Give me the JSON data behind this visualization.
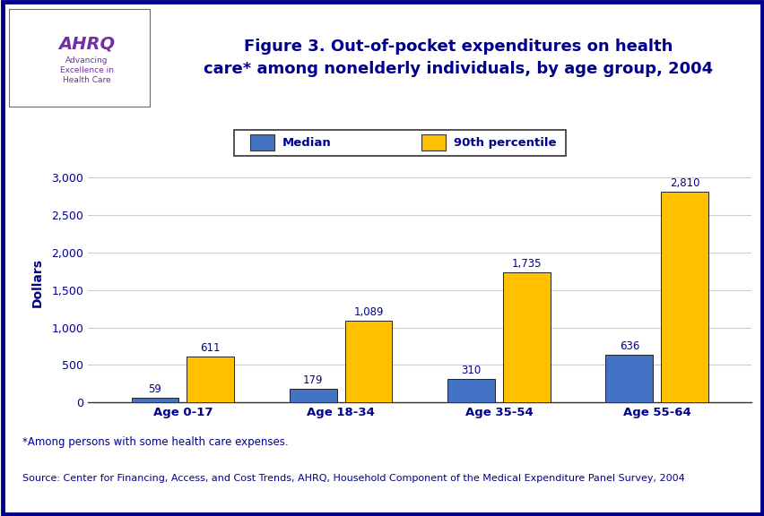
{
  "categories": [
    "Age 0-17",
    "Age 18-34",
    "Age 35-54",
    "Age 55-64"
  ],
  "median_values": [
    59,
    179,
    310,
    636
  ],
  "percentile90_values": [
    611,
    1089,
    1735,
    2810
  ],
  "median_color": "#4472C4",
  "percentile90_color": "#FFC000",
  "bar_edge_color": "#222222",
  "ylabel": "Dollars",
  "ylim": [
    0,
    3200
  ],
  "yticks": [
    0,
    500,
    1000,
    1500,
    2000,
    2500,
    3000
  ],
  "title_line1": "Figure 3. Out-of-pocket expenditures on health",
  "title_line2": "care* among nonelderly individuals, by age group, 2004",
  "legend_labels": [
    "Median",
    "90th percentile"
  ],
  "footnote1": "*Among persons with some health care expenses.",
  "footnote2": "Source: Center for Financing, Access, and Cost Trends, AHRQ, Household Component of the Medical Expenditure Panel Survey, 2004",
  "bg_white": "#ffffff",
  "border_color": "#00008B",
  "title_color": "#00008B",
  "label_color": "#00008B",
  "footnote_color": "#00008B",
  "tick_label_color": "#00008B",
  "grid_color": "#cccccc",
  "header_line_color": "#00008B"
}
